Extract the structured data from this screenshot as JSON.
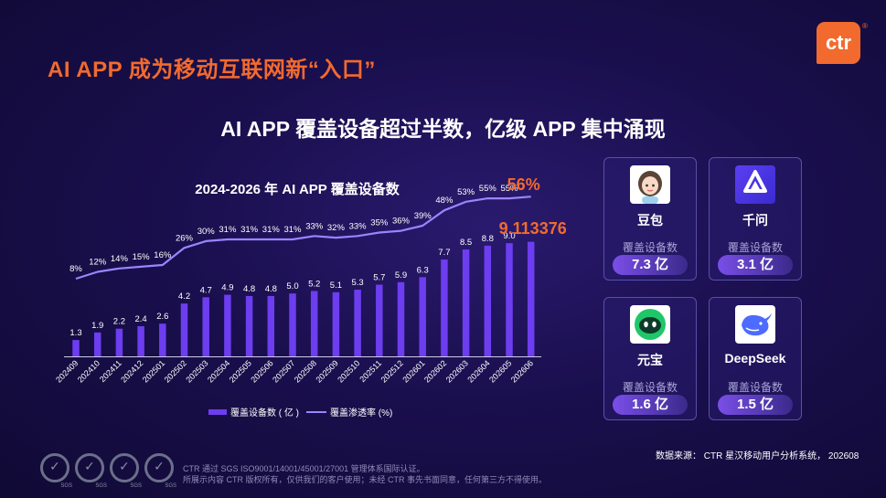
{
  "page_title": "AI APP 成为移动互联网新“入口”",
  "logo": {
    "text": "ctr",
    "mark": "®"
  },
  "headline": "AI APP 覆盖设备超过半数，亿级 APP 集中涌现",
  "chart_title": "2024-2026 年 AI APP 覆盖设备数",
  "legend": {
    "bar": "覆盖设备数 ( 亿 )",
    "line": "覆盖渗透率 (%)"
  },
  "colors": {
    "accent": "#f26a2e",
    "bar": "#6d3df0",
    "line": "#9a85ff"
  },
  "chart_data": {
    "type": "bar",
    "categories": [
      "202409",
      "202410",
      "202411",
      "202412",
      "202501",
      "202502",
      "202503",
      "202504",
      "202505",
      "202506",
      "202507",
      "202508",
      "202509",
      "202510",
      "202511",
      "202512",
      "202601",
      "202602",
      "202603",
      "202604",
      "202605",
      "202606"
    ],
    "series": [
      {
        "name": "覆盖设备数 ( 亿 )",
        "type": "bar",
        "values": [
          1.3,
          1.9,
          2.2,
          2.4,
          2.6,
          4.2,
          4.7,
          4.9,
          4.8,
          4.8,
          5.0,
          5.2,
          5.1,
          5.3,
          5.7,
          5.9,
          6.3,
          7.7,
          8.5,
          8.8,
          9.0,
          9.113376
        ],
        "labels": [
          "1.3",
          "1.9",
          "2.2",
          "2.4",
          "2.6",
          "4.2",
          "4.7",
          "4.9",
          "4.8",
          "4.8",
          "5.0",
          "5.2",
          "5.1",
          "5.3",
          "5.7",
          "5.9",
          "6.3",
          "7.7",
          "8.5",
          "8.8",
          "9.0",
          "9.113376"
        ]
      },
      {
        "name": "覆盖渗透率 (%)",
        "type": "line",
        "values": [
          8,
          12,
          14,
          15,
          16,
          26,
          30,
          31,
          31,
          31,
          31,
          33,
          32,
          33,
          35,
          36,
          39,
          48,
          53,
          55,
          55,
          56
        ],
        "labels": [
          "8%",
          "12%",
          "14%",
          "15%",
          "16%",
          "26%",
          "30%",
          "31%",
          "31%",
          "31%",
          "31%",
          "33%",
          "32%",
          "33%",
          "35%",
          "36%",
          "39%",
          "48%",
          "53%",
          "55%",
          "55%",
          "56%"
        ]
      }
    ],
    "highlight_last": true
  },
  "cards": [
    {
      "name": "豆包",
      "label": "覆盖设备数",
      "value": "7.3 亿",
      "icon": "doubao-icon"
    },
    {
      "name": "千问",
      "label": "覆盖设备数",
      "value": "3.1 亿",
      "icon": "qianwen-icon"
    },
    {
      "name": "元宝",
      "label": "覆盖设备数",
      "value": "1.6 亿",
      "icon": "yuanbao-icon"
    },
    {
      "name": "DeepSeek",
      "label": "覆盖设备数",
      "value": "1.5 亿",
      "icon": "deepseek-icon"
    }
  ],
  "source": "数据来源： CTR 星汉移动用户分析系统， 202608",
  "badge_label": "SGS",
  "footer": {
    "line1": "CTR 通过 SGS ISO9001/14001/45001/27001 管理体系国际认证。",
    "line2": "所展示内容 CTR 版权所有，仅供我们的客户使用；未经 CTR 事先书面同意，任何第三方不得使用。"
  }
}
